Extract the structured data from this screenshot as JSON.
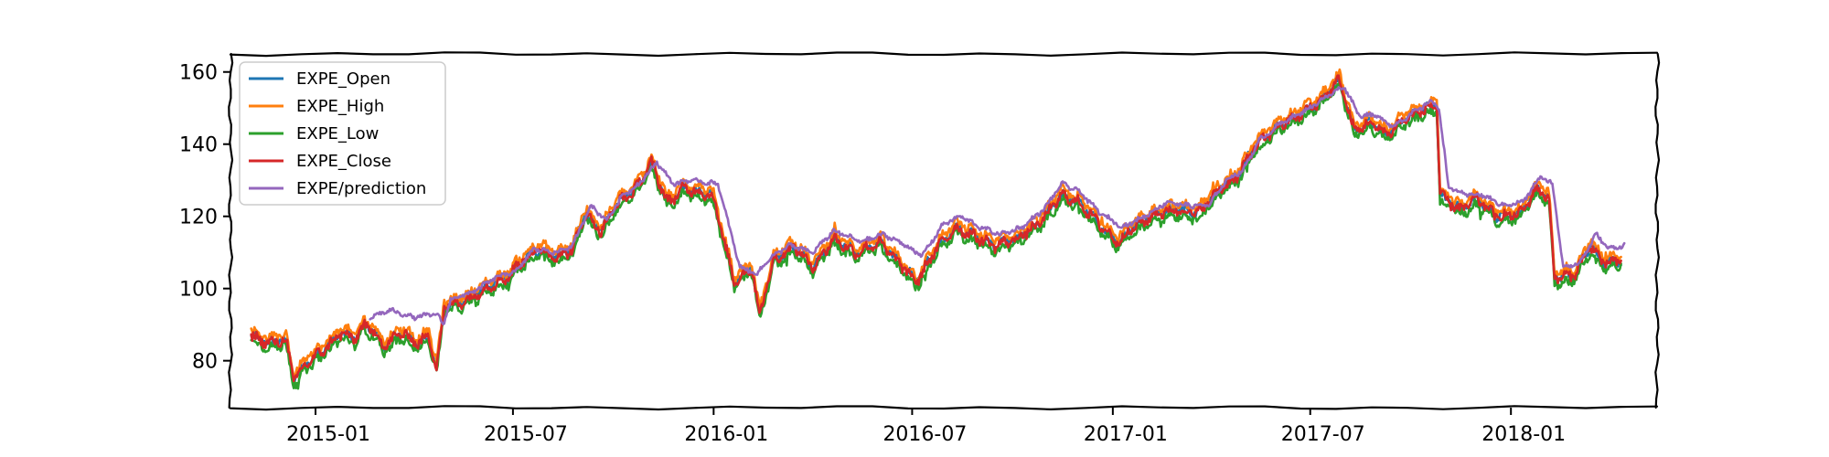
{
  "chart_data": {
    "type": "line",
    "style": "xkcd",
    "title": "",
    "xlabel": "",
    "ylabel": "",
    "x_type": "date",
    "xlim": [
      "2014-10-15",
      "2018-05-15"
    ],
    "ylim": [
      67,
      165
    ],
    "x_ticks": [
      "2015-01",
      "2015-07",
      "2016-01",
      "2016-07",
      "2017-01",
      "2017-07",
      "2018-01"
    ],
    "x_tick_dates": [
      "2015-01-01",
      "2015-07-01",
      "2016-01-01",
      "2016-07-01",
      "2017-01-01",
      "2017-07-01",
      "2018-01-01"
    ],
    "y_ticks": [
      80,
      100,
      120,
      140,
      160
    ],
    "y_tick_labels": [
      "80",
      "100",
      "120",
      "140",
      "160"
    ],
    "grid": false,
    "legend_position": "upper-left",
    "series": [
      {
        "name": "EXPE_Open",
        "color": "#1f77b4",
        "offset": 0
      },
      {
        "name": "EXPE_High",
        "color": "#ff7f0e",
        "offset": 1.3
      },
      {
        "name": "EXPE_Low",
        "color": "#2ca02c",
        "offset": -1.6
      },
      {
        "name": "EXPE_Close",
        "color": "#d62728",
        "offset": -0.2
      },
      {
        "name": "EXPE/prediction",
        "color": "#9467bd"
      }
    ],
    "price_points": [
      [
        "2014-11-03",
        87
      ],
      [
        "2014-11-20",
        85
      ],
      [
        "2014-12-05",
        86
      ],
      [
        "2014-12-12",
        75
      ],
      [
        "2014-12-26",
        80
      ],
      [
        "2015-01-08",
        83
      ],
      [
        "2015-01-25",
        88
      ],
      [
        "2015-02-05",
        86
      ],
      [
        "2015-02-15",
        90
      ],
      [
        "2015-02-25",
        88
      ],
      [
        "2015-03-05",
        84
      ],
      [
        "2015-03-20",
        88
      ],
      [
        "2015-04-05",
        85
      ],
      [
        "2015-04-15",
        87
      ],
      [
        "2015-04-22",
        78
      ],
      [
        "2015-04-29",
        95
      ],
      [
        "2015-05-20",
        97
      ],
      [
        "2015-06-10",
        101
      ],
      [
        "2015-06-25",
        103
      ],
      [
        "2015-07-10",
        108
      ],
      [
        "2015-07-25",
        111
      ],
      [
        "2015-08-10",
        109
      ],
      [
        "2015-08-25",
        111
      ],
      [
        "2015-09-05",
        121
      ],
      [
        "2015-09-20",
        116
      ],
      [
        "2015-10-05",
        124
      ],
      [
        "2015-10-20",
        127
      ],
      [
        "2015-11-05",
        135
      ],
      [
        "2015-11-20",
        124
      ],
      [
        "2015-12-05",
        128
      ],
      [
        "2015-12-31",
        126
      ],
      [
        "2016-01-20",
        102
      ],
      [
        "2016-02-05",
        106
      ],
      [
        "2016-02-12",
        93
      ],
      [
        "2016-02-25",
        108
      ],
      [
        "2016-03-15",
        112
      ],
      [
        "2016-04-01",
        106
      ],
      [
        "2016-04-20",
        114
      ],
      [
        "2016-05-10",
        110
      ],
      [
        "2016-06-01",
        113
      ],
      [
        "2016-06-20",
        107
      ],
      [
        "2016-07-05",
        102
      ],
      [
        "2016-07-25",
        112
      ],
      [
        "2016-08-10",
        117
      ],
      [
        "2016-08-25",
        115
      ],
      [
        "2016-09-15",
        112
      ],
      [
        "2016-10-05",
        114
      ],
      [
        "2016-10-25",
        118
      ],
      [
        "2016-11-15",
        126
      ],
      [
        "2016-12-01",
        124
      ],
      [
        "2016-12-20",
        118
      ],
      [
        "2017-01-05",
        113
      ],
      [
        "2017-01-20",
        117
      ],
      [
        "2017-02-10",
        121
      ],
      [
        "2017-03-01",
        122
      ],
      [
        "2017-03-20",
        121
      ],
      [
        "2017-04-10",
        128
      ],
      [
        "2017-04-25",
        131
      ],
      [
        "2017-05-10",
        139
      ],
      [
        "2017-06-01",
        145
      ],
      [
        "2017-06-20",
        148
      ],
      [
        "2017-07-10",
        152
      ],
      [
        "2017-07-28",
        158
      ],
      [
        "2017-08-10",
        144
      ],
      [
        "2017-08-25",
        146
      ],
      [
        "2017-09-10",
        143
      ],
      [
        "2017-09-25",
        147
      ],
      [
        "2017-10-15",
        150
      ],
      [
        "2017-10-25",
        151
      ],
      [
        "2017-10-28",
        126
      ],
      [
        "2017-11-15",
        122
      ],
      [
        "2017-12-01",
        125
      ],
      [
        "2017-12-20",
        120
      ],
      [
        "2018-01-10",
        121
      ],
      [
        "2018-01-25",
        128
      ],
      [
        "2018-02-05",
        125
      ],
      [
        "2018-02-10",
        103
      ],
      [
        "2018-02-28",
        104
      ],
      [
        "2018-03-15",
        112
      ],
      [
        "2018-03-28",
        107
      ],
      [
        "2018-04-12",
        108
      ]
    ],
    "prediction_points": [
      [
        "2015-02-20",
        92
      ],
      [
        "2015-03-10",
        94
      ],
      [
        "2015-04-01",
        92
      ],
      [
        "2015-04-22",
        93
      ],
      [
        "2015-04-28",
        90
      ],
      [
        "2015-05-05",
        97
      ],
      [
        "2015-05-25",
        99
      ],
      [
        "2015-06-15",
        103
      ],
      [
        "2015-07-05",
        105
      ],
      [
        "2015-07-20",
        111
      ],
      [
        "2015-08-10",
        110
      ],
      [
        "2015-08-25",
        112
      ],
      [
        "2015-09-10",
        123
      ],
      [
        "2015-09-25",
        119
      ],
      [
        "2015-10-10",
        126
      ],
      [
        "2015-10-25",
        129
      ],
      [
        "2015-11-10",
        135
      ],
      [
        "2015-11-25",
        129
      ],
      [
        "2015-12-10",
        130
      ],
      [
        "2016-01-05",
        129
      ],
      [
        "2016-01-25",
        106
      ],
      [
        "2016-02-10",
        104
      ],
      [
        "2016-02-20",
        108
      ],
      [
        "2016-03-10",
        112
      ],
      [
        "2016-04-01",
        110
      ],
      [
        "2016-04-20",
        116
      ],
      [
        "2016-05-15",
        113
      ],
      [
        "2016-06-05",
        115
      ],
      [
        "2016-06-25",
        112
      ],
      [
        "2016-07-10",
        109
      ],
      [
        "2016-07-30",
        118
      ],
      [
        "2016-08-15",
        120
      ],
      [
        "2016-09-01",
        117
      ],
      [
        "2016-09-20",
        115
      ],
      [
        "2016-10-10",
        117
      ],
      [
        "2016-10-30",
        122
      ],
      [
        "2016-11-15",
        129
      ],
      [
        "2016-12-01",
        127
      ],
      [
        "2016-12-20",
        121
      ],
      [
        "2017-01-10",
        117
      ],
      [
        "2017-01-30",
        120
      ],
      [
        "2017-02-20",
        124
      ],
      [
        "2017-03-10",
        123
      ],
      [
        "2017-03-30",
        123
      ],
      [
        "2017-04-15",
        130
      ],
      [
        "2017-05-01",
        133
      ],
      [
        "2017-05-15",
        141
      ],
      [
        "2017-06-05",
        146
      ],
      [
        "2017-06-25",
        149
      ],
      [
        "2017-07-15",
        153
      ],
      [
        "2017-08-01",
        156
      ],
      [
        "2017-08-15",
        148
      ],
      [
        "2017-08-30",
        148
      ],
      [
        "2017-09-15",
        145
      ],
      [
        "2017-09-30",
        148
      ],
      [
        "2017-10-20",
        152
      ],
      [
        "2017-10-27",
        150
      ],
      [
        "2017-11-05",
        128
      ],
      [
        "2017-11-20",
        126
      ],
      [
        "2017-12-05",
        126
      ],
      [
        "2017-12-25",
        123
      ],
      [
        "2018-01-12",
        124
      ],
      [
        "2018-01-28",
        131
      ],
      [
        "2018-02-08",
        129
      ],
      [
        "2018-02-18",
        106
      ],
      [
        "2018-03-05",
        107
      ],
      [
        "2018-03-20",
        115
      ],
      [
        "2018-04-01",
        111
      ],
      [
        "2018-04-15",
        112
      ]
    ]
  }
}
